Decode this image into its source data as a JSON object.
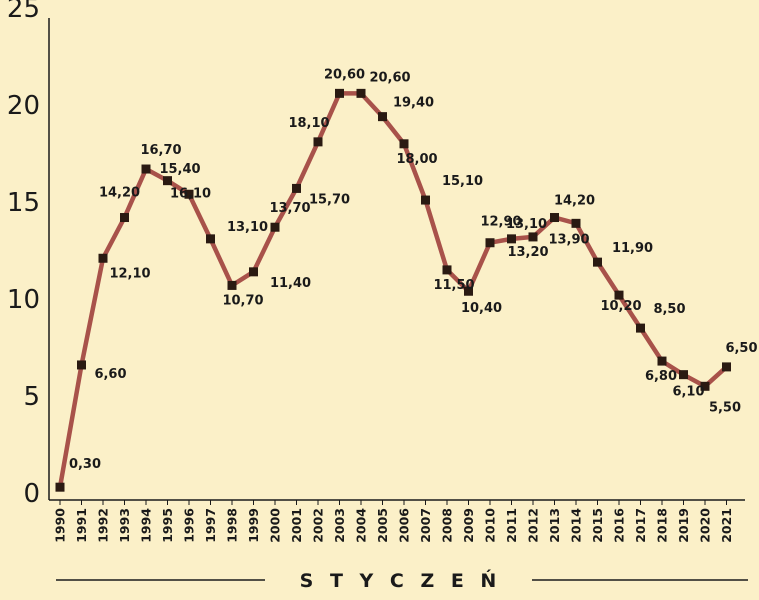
{
  "chart_data": {
    "type": "line",
    "title": "",
    "xlabel": "S T Y C Z E Ń",
    "ylabel": "",
    "ylim": [
      0,
      25
    ],
    "yticks": [
      "0",
      "5",
      "10",
      "15",
      "20",
      "25"
    ],
    "categories": [
      "1990",
      "1991",
      "1992",
      "1993",
      "1994",
      "1995",
      "1996",
      "1997",
      "1998",
      "1999",
      "2000",
      "2001",
      "2002",
      "2003",
      "2004",
      "2005",
      "2006",
      "2007",
      "2008",
      "2009",
      "2010",
      "2011",
      "2012",
      "2013",
      "2014",
      "2015",
      "2016",
      "2017",
      "2018",
      "2019",
      "2020",
      "2021"
    ],
    "values": [
      0.3,
      6.6,
      12.1,
      14.2,
      16.7,
      16.1,
      15.4,
      13.1,
      10.7,
      11.4,
      13.7,
      15.7,
      18.1,
      20.6,
      20.6,
      19.4,
      18.0,
      15.1,
      11.5,
      10.4,
      12.9,
      13.1,
      13.2,
      14.2,
      13.9,
      11.9,
      10.2,
      8.5,
      6.8,
      6.1,
      5.5,
      6.5
    ],
    "data_labels": [
      "0,30",
      "6,60",
      "12,10",
      "14,20",
      "16,70",
      "16,10",
      "15,40",
      "13,10",
      "10,70",
      "11,40",
      "13,70",
      "15,70",
      "18,10",
      "20,60",
      "20,60",
      "19,40",
      "18,00",
      "15,10",
      "11,50",
      "10,40",
      "12,90",
      "13,10",
      "13,20",
      "14,20",
      "13,90",
      "11,90",
      "10,20",
      "8,50",
      "6,80",
      "6,10",
      "5,50",
      "6,50"
    ],
    "grid": false,
    "colors": {
      "line": "#a8524a",
      "marker": "#2a1a12",
      "background": "#fbf0c8",
      "axis": "#1a1a1a"
    }
  }
}
